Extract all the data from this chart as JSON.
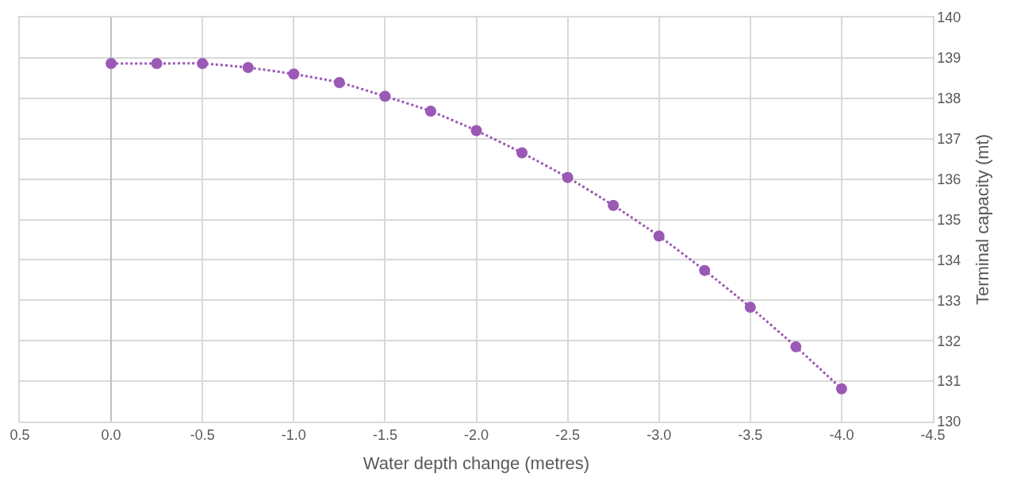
{
  "chart_data": {
    "type": "line",
    "xlabel": "Water depth change (metres)",
    "ylabel": "Terminal capacity (mt)",
    "x": [
      0,
      -0.25,
      -0.5,
      -0.75,
      -1.0,
      -1.25,
      -1.5,
      -1.75,
      -2.0,
      -2.25,
      -2.5,
      -2.75,
      -3.0,
      -3.25,
      -3.5,
      -3.75,
      -4.0
    ],
    "series": [
      {
        "color": "#9b59b6",
        "values": [
          138.86,
          138.86,
          138.86,
          138.76,
          138.6,
          138.39,
          138.05,
          137.68,
          137.2,
          136.65,
          136.04,
          135.35,
          134.59,
          133.74,
          132.83,
          131.85,
          130.81
        ]
      }
    ],
    "xlim": [
      0.5,
      -4.5
    ],
    "xticks": [
      0.5,
      {
        "value": 0,
        "label": "0.0"
      },
      -0.5,
      {
        "value": -1,
        "label": "-1.0"
      },
      -1.5,
      {
        "value": -2,
        "label": "-2.0"
      },
      -2.5,
      {
        "value": -3,
        "label": "-3.0"
      },
      -3.5,
      {
        "value": -4,
        "label": "-4.0"
      },
      -4.5
    ],
    "ylim": [
      130,
      140
    ],
    "yticks": [
      130,
      131,
      132,
      133,
      134,
      135,
      136,
      137,
      138,
      139,
      140
    ],
    "grid": true,
    "marker": "circle",
    "line_style": "dotted"
  }
}
